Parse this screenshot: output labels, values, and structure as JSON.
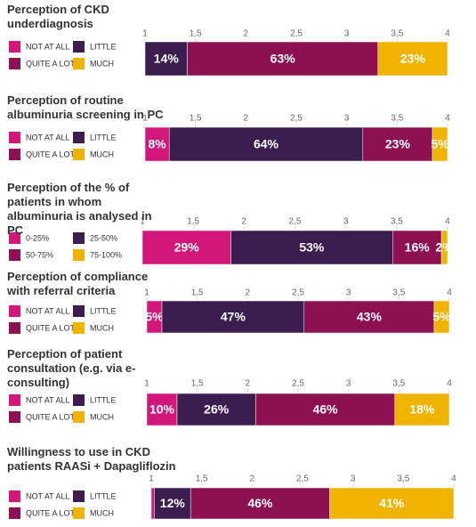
{
  "chart_data": [
    {
      "type": "bar",
      "title": "Perception of CKD underdiagnosis",
      "xlim": [
        1,
        4
      ],
      "xticks": [
        1,
        {
          "value": 1.5,
          "label": "1,5"
        },
        2,
        {
          "value": 2.5,
          "label": "2,5"
        },
        3,
        {
          "value": 3.5,
          "label": "3,5"
        },
        4
      ],
      "series": [
        {
          "name": "NOT AT ALL",
          "color": "#d3177a",
          "values": [
            0
          ],
          "value_labels": [
            null
          ]
        },
        {
          "name": "LITTLE",
          "color": "#3b1d4f",
          "values": [
            14
          ],
          "value_labels": [
            "14%"
          ]
        },
        {
          "name": "QUITE A LOT",
          "color": "#8c1052",
          "values": [
            63
          ],
          "value_labels": [
            "63%"
          ]
        },
        {
          "name": "MUCH",
          "color": "#f0b400",
          "values": [
            23
          ],
          "value_labels": [
            "23%"
          ]
        }
      ]
    },
    {
      "type": "bar",
      "title": "Perception of routine albuminuria screening in PC",
      "xlim": [
        1,
        4
      ],
      "xticks": [
        1,
        {
          "value": 1.5,
          "label": "1,5"
        },
        2,
        {
          "value": 2.5,
          "label": "2,5"
        },
        3,
        {
          "value": 3.5,
          "label": "3,5"
        },
        4
      ],
      "series": [
        {
          "name": "NOT AT ALL",
          "color": "#d3177a",
          "values": [
            8
          ],
          "value_labels": [
            "8%"
          ]
        },
        {
          "name": "LITTLE",
          "color": "#3b1d4f",
          "values": [
            64
          ],
          "value_labels": [
            "64%"
          ]
        },
        {
          "name": "QUITE A LOT",
          "color": "#8c1052",
          "values": [
            23
          ],
          "value_labels": [
            "23%"
          ]
        },
        {
          "name": "MUCH",
          "color": "#f0b400",
          "values": [
            5
          ],
          "value_labels": [
            "5%"
          ]
        }
      ]
    },
    {
      "type": "bar",
      "title": "Perception of the % of patients in whom albuminuria is analysed in PC",
      "xlim": [
        1,
        4
      ],
      "xticks": [
        1,
        {
          "value": 1.5,
          "label": "1,5"
        },
        2,
        {
          "value": 2.5,
          "label": "2,5"
        },
        3,
        {
          "value": 3.5,
          "label": "3,5"
        },
        4
      ],
      "series": [
        {
          "name": "0-25%",
          "color": "#d3177a",
          "values": [
            29
          ],
          "value_labels": [
            "29%"
          ]
        },
        {
          "name": "25-50%",
          "color": "#3b1d4f",
          "values": [
            53
          ],
          "value_labels": [
            "53%"
          ]
        },
        {
          "name": "50-75%",
          "color": "#8c1052",
          "values": [
            16
          ],
          "value_labels": [
            "16%"
          ]
        },
        {
          "name": "75-100%",
          "color": "#f0b400",
          "values": [
            2
          ],
          "value_labels": [
            "2%"
          ]
        }
      ]
    },
    {
      "type": "bar",
      "title": "Perception of compliance with referral criteria",
      "xlim": [
        1,
        4
      ],
      "xticks": [
        1,
        {
          "value": 1.5,
          "label": "1,5"
        },
        2,
        {
          "value": 2.5,
          "label": "2,5"
        },
        3,
        {
          "value": 3.5,
          "label": "3,5"
        },
        4
      ],
      "series": [
        {
          "name": "NOT AT ALL",
          "color": "#d3177a",
          "values": [
            5
          ],
          "value_labels": [
            "5%"
          ]
        },
        {
          "name": "LITTLE",
          "color": "#3b1d4f",
          "values": [
            47
          ],
          "value_labels": [
            "47%"
          ]
        },
        {
          "name": "QUITE A LOT",
          "color": "#8c1052",
          "values": [
            43
          ],
          "value_labels": [
            "43%"
          ]
        },
        {
          "name": "MUCH",
          "color": "#f0b400",
          "values": [
            5
          ],
          "value_labels": [
            "5%"
          ]
        }
      ]
    },
    {
      "type": "bar",
      "title": "Perception of patient consultation (e.g. via e-consulting)",
      "xlim": [
        1,
        4
      ],
      "xticks": [
        1,
        {
          "value": 1.5,
          "label": "1,5"
        },
        2,
        {
          "value": 2.5,
          "label": "2,5"
        },
        3,
        {
          "value": 3.5,
          "label": "3,5"
        },
        4
      ],
      "series": [
        {
          "name": "NOT AT ALL",
          "color": "#d3177a",
          "values": [
            10
          ],
          "value_labels": [
            "10%"
          ]
        },
        {
          "name": "LITTLE",
          "color": "#3b1d4f",
          "values": [
            26
          ],
          "value_labels": [
            "26%"
          ]
        },
        {
          "name": "QUITE A LOT",
          "color": "#8c1052",
          "values": [
            46
          ],
          "value_labels": [
            "46%"
          ]
        },
        {
          "name": "MUCH",
          "color": "#f0b400",
          "values": [
            18
          ],
          "value_labels": [
            "18%"
          ]
        }
      ]
    },
    {
      "type": "bar",
      "title": "Willingness to use in CKD patients RAASi + Dapagliflozin",
      "xlim": [
        1,
        4
      ],
      "xticks": [
        1,
        {
          "value": 1.5,
          "label": "1,5"
        },
        2,
        {
          "value": 2.5,
          "label": "2,5"
        },
        3,
        {
          "value": 3.5,
          "label": "3,5"
        },
        4
      ],
      "series": [
        {
          "name": "NOT AT ALL",
          "color": "#d3177a",
          "values": [
            1
          ],
          "value_labels": [
            null
          ]
        },
        {
          "name": "LITTLE",
          "color": "#3b1d4f",
          "values": [
            12
          ],
          "value_labels": [
            "12%"
          ]
        },
        {
          "name": "QUITE A LOT",
          "color": "#8c1052",
          "values": [
            46
          ],
          "value_labels": [
            "46%"
          ]
        },
        {
          "name": "MUCH",
          "color": "#f0b400",
          "values": [
            41
          ],
          "value_labels": [
            "41%"
          ]
        }
      ]
    }
  ]
}
